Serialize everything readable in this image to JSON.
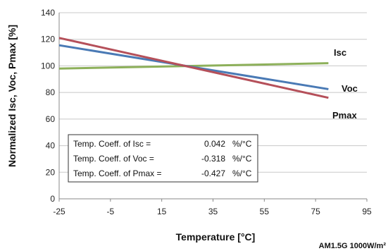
{
  "chart_data": {
    "type": "line",
    "xlabel": "Temperature [°C]",
    "ylabel": "Normalized Isc, Voc, Pmax [%]",
    "xlim": [
      -25,
      95
    ],
    "ylim": [
      0,
      140
    ],
    "x_ticks": [
      -25,
      -5,
      15,
      35,
      55,
      75,
      95
    ],
    "y_ticks": [
      0,
      20,
      40,
      60,
      80,
      100,
      120,
      140
    ],
    "grid": "horizontal",
    "series": [
      {
        "name": "Isc",
        "color": "#8db05a",
        "x": [
          -25,
          80
        ],
        "y": [
          98,
          102
        ]
      },
      {
        "name": "Voc",
        "color": "#4a7ab5",
        "x": [
          -25,
          80
        ],
        "y": [
          115.5,
          82.5
        ]
      },
      {
        "name": "Pmax",
        "color": "#b5505a",
        "x": [
          -25,
          80
        ],
        "y": [
          121,
          76
        ]
      }
    ],
    "coefficients_box": [
      {
        "label": "Temp. Coeff. of Isc =",
        "value": "0.042",
        "unit": "%/°C"
      },
      {
        "label": "Temp. Coeff. of Voc =",
        "value": "-0.318",
        "unit": "%/°C"
      },
      {
        "label": "Temp. Coeff. of Pmax =",
        "value": "-0.427",
        "unit": "%/°C"
      }
    ],
    "condition_note": "AM1.5G 1000W/m²"
  }
}
